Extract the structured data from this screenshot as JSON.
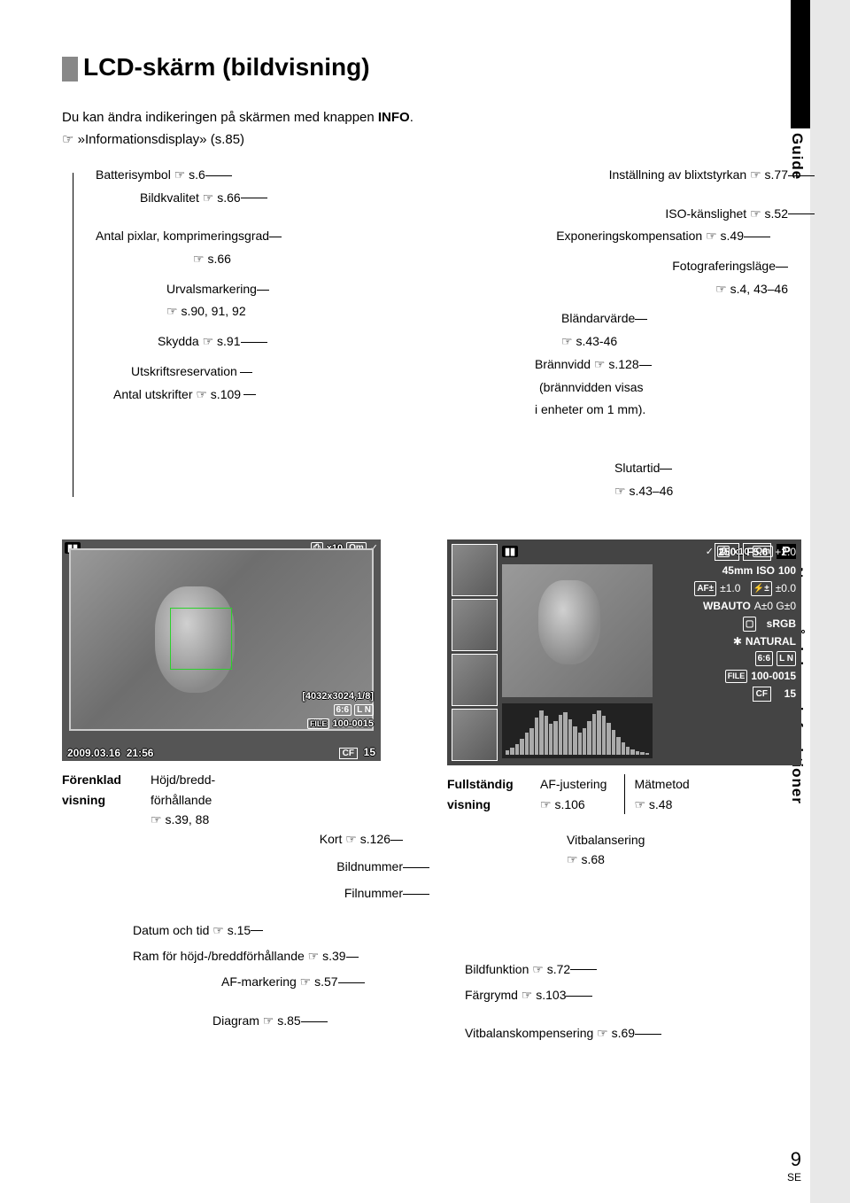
{
  "title": "LCD-skärm (bildvisning)",
  "intro_line1": "Du kan ändra indikeringen på skärmen med knappen ",
  "info_btn": "INFO",
  "intro_line1_end": ".",
  "intro_line2_pre": "☞ »Informationsdisplay» (s.85)",
  "side": {
    "guide": "Guide",
    "names": "Namn på delar och funktioner"
  },
  "left_labels": {
    "battery": "Batterisymbol ☞ s.6",
    "quality": "Bildkvalitet ☞ s.66",
    "pixels": "Antal pixlar, komprimeringsgrad",
    "pixels_ref": "☞ s.66",
    "selection": "Urvalsmarkering",
    "selection_ref": "☞ s.90, 91, 92",
    "protect": "Skydda ☞ s.91",
    "printres": "Utskriftsreservation",
    "printcount": "Antal utskrifter ☞ s.109"
  },
  "right_labels": {
    "flash": "Inställning av blixtstyrkan ☞ s.77",
    "iso": "ISO-känslighet ☞ s.52",
    "expcomp": "Exponeringskompensation ☞ s.49",
    "mode": "Fotograferingsläge",
    "mode_ref": "☞ s.4, 43–46",
    "aperture": "Bländarvärde",
    "aperture_ref": "☞ s.43-46",
    "focal": "Brännvidd ☞ s.128",
    "focal_note1": "(brännvidden visas",
    "focal_note2": "i enheter om 1 mm).",
    "shutter": "Slutartid",
    "shutter_ref": "☞ s.43–46"
  },
  "lcd1": {
    "x10": "x10",
    "protect_icon": "O⁠m",
    "check": "✓",
    "res": "[4032x3024,1/8]",
    "aspect_sq": "6:6",
    "ln": "L N",
    "file": "100-0015",
    "cf": "CF",
    "framenum": "15",
    "date": "2009.03.16",
    "time": "21:56",
    "print_icon": "⎙"
  },
  "lcd1_under": {
    "title": "Förenklad",
    "title2": "visning",
    "aspect1": "Höjd/bredd-",
    "aspect2": "förhållande",
    "aspect_ref": "☞ s.39, 88",
    "card": "Kort ☞ s.126",
    "framenum": "Bildnummer",
    "filenum": "Filnummer"
  },
  "lcd2": {
    "check": "✓",
    "print_icon": "⎙",
    "x10": "x10",
    "lock": "O⁠m",
    "P": "P",
    "shutter": "250",
    "fnum": "F5.6",
    "ev": "+2.0",
    "focal": "45mm",
    "iso_lbl": "ISO",
    "iso_v": "100",
    "af_box": "AF±",
    "afv": "±1.0",
    "flash_box": "⚡±",
    "flashv": "±0.0",
    "wb": "WBAUTO",
    "wb_ab": "A±0 G±0",
    "srgb": "sRGB",
    "natural": "NATURAL",
    "picicon": "✱",
    "aspect_sq": "6:6",
    "ln": "L N",
    "file": "100-0015",
    "cf": "CF",
    "framenum": "15",
    "meter_icon": "▢"
  },
  "lcd2_under": {
    "title": "Fullständig",
    "title2": "visning",
    "af": "AF-justering",
    "af_ref": "☞ s.106",
    "meter": "Mätmetod",
    "meter_ref": "☞ s.48",
    "wb": "Vitbalansering",
    "wb_ref": "☞ s.68"
  },
  "bottom_left": {
    "datetime": "Datum och tid ☞ s.15",
    "aspect_frame": "Ram för höjd-/breddförhållande ☞ s.39",
    "afmark": "AF-markering ☞ s.57",
    "diagram": "Diagram ☞ s.85"
  },
  "bottom_right": {
    "picfn": "Bildfunktion ☞ s.72",
    "colorspace": "Färgrymd ☞ s.103",
    "wbcomp": "Vitbalanskompensering ☞ s.69"
  },
  "page_num": "9",
  "page_loc": "SE",
  "hist_vals": [
    5,
    8,
    12,
    18,
    25,
    30,
    42,
    50,
    44,
    35,
    38,
    45,
    48,
    40,
    32,
    25,
    30,
    38,
    46,
    50,
    44,
    36,
    28,
    20,
    14,
    9,
    6,
    4,
    3,
    2
  ]
}
